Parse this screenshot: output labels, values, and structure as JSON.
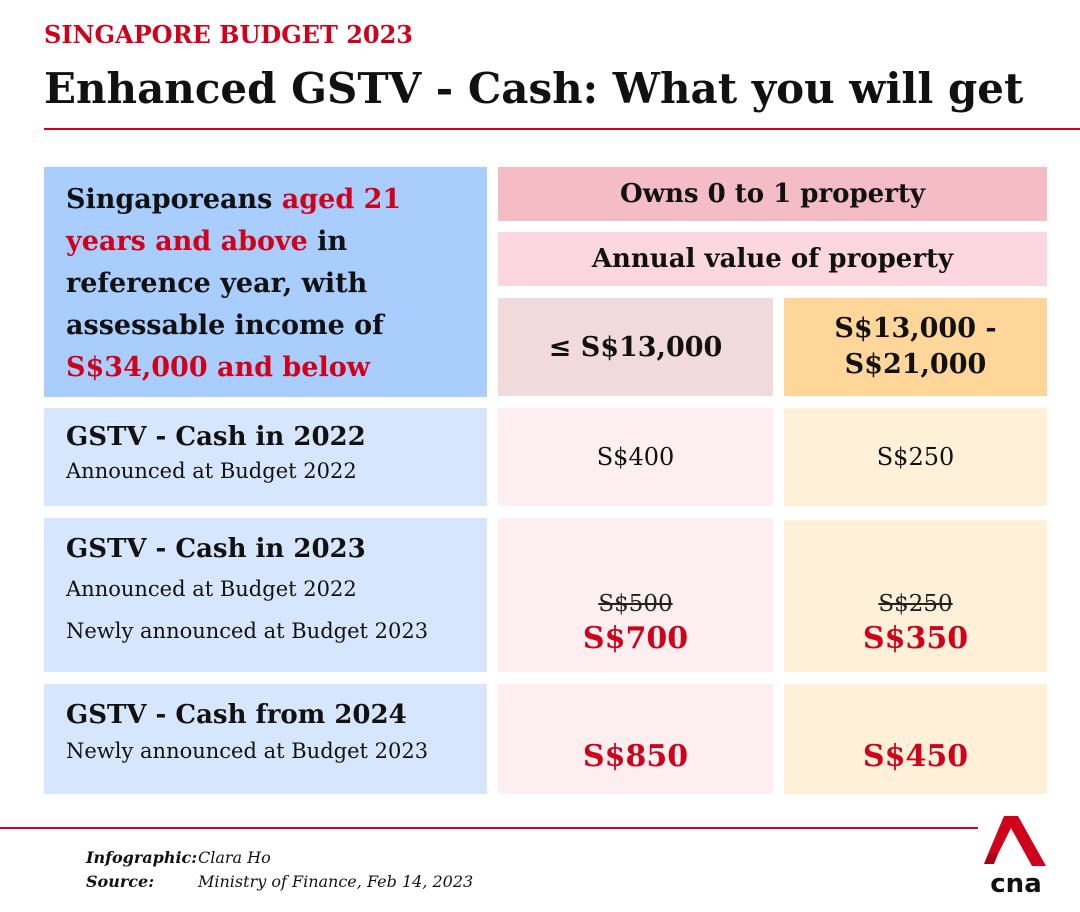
{
  "header": {
    "kicker": "SINGAPORE BUDGET 2023",
    "title": "Enhanced GSTV - Cash: What you will get"
  },
  "eligibility": {
    "part1": "Singaporeans ",
    "part2_red": "aged 21 years and above",
    "part3": " in reference year, with assessable income of ",
    "part4_red": "S$34,000 and below"
  },
  "table": {
    "header_ownership": "Owns 0 to 1 property",
    "header_annual_value": "Annual value of property",
    "col1": "≤ S$13,000",
    "col2_line1": "S$13,000 -",
    "col2_line2": "S$21,000",
    "rows": [
      {
        "title": "GSTV - Cash in 2022",
        "sub1": "Announced at Budget 2022",
        "col1": "S$400",
        "col2": "S$250"
      },
      {
        "title": "GSTV - Cash in 2023",
        "sub1": "Announced at Budget 2022",
        "sub2": "Newly announced at Budget 2023",
        "col1_old": "S$500",
        "col1_new": "S$700",
        "col2_old": "S$250",
        "col2_new": "S$350"
      },
      {
        "title": "GSTV - Cash from 2024",
        "sub1": "Newly announced at Budget 2023",
        "col1_new": "S$850",
        "col2_new": "S$450"
      }
    ]
  },
  "credits": {
    "infographic_label": "Infographic:",
    "infographic_value": "Clara Ho",
    "source_label": "Source:",
    "source_value": "Ministry of Finance, Feb 14, 2023"
  },
  "logo": {
    "text": "cna"
  },
  "colors": {
    "accent": "#d0021b"
  }
}
